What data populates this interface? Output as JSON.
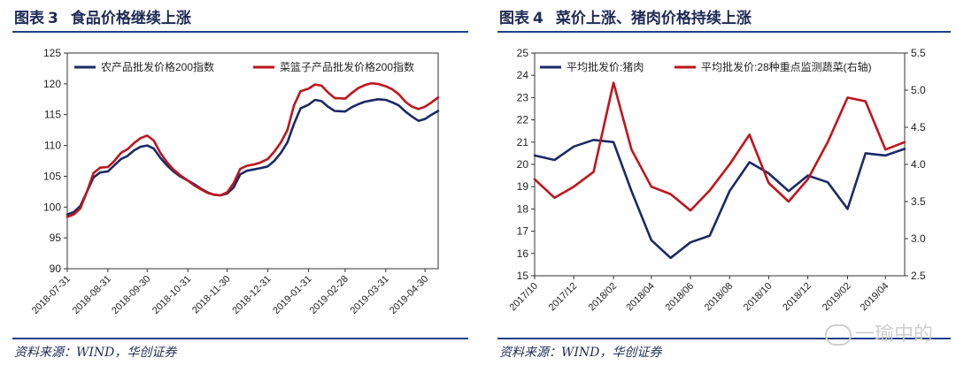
{
  "left": {
    "figure_label": "图表",
    "figure_num": "3",
    "figure_title": "食品价格继续上涨",
    "source": "资料来源：WIND，华创证券"
  },
  "right": {
    "figure_label": "图表",
    "figure_num": "4",
    "figure_title": "菜价上涨、猪肉价格持续上涨",
    "source": "资料来源：WIND，华创证券"
  },
  "watermark": "一瑜中的",
  "colors": {
    "navy": "#1a2a66",
    "red": "#c0141c",
    "rule": "#1f3f8a"
  },
  "chart_data": [
    {
      "type": "line",
      "title": "",
      "xlabel": "",
      "ylabel": "",
      "ylim": [
        90,
        125
      ],
      "yticks": [
        90,
        95,
        100,
        105,
        110,
        115,
        120,
        125
      ],
      "xlim": [
        "2018-07-31",
        "2019-05-10"
      ],
      "xticks": [
        "2018-07-31",
        "2018-08-31",
        "2018-09-30",
        "2018-10-31",
        "2018-11-30",
        "2018-12-31",
        "2019-01-31",
        "2019-02-28",
        "2019-03-31",
        "2019-04-30"
      ],
      "legend": "top",
      "grid": false,
      "series": [
        {
          "name": "农产品批发价格200指数",
          "color": "#1a2a66",
          "axis": "left",
          "points": [
            [
              "2018-07-31",
              98.8
            ],
            [
              "2018-08-05",
              99.2
            ],
            [
              "2018-08-10",
              100.2
            ],
            [
              "2018-08-15",
              102.5
            ],
            [
              "2018-08-20",
              104.8
            ],
            [
              "2018-08-25",
              105.6
            ],
            [
              "2018-08-31",
              105.8
            ],
            [
              "2018-09-05",
              106.8
            ],
            [
              "2018-09-10",
              107.8
            ],
            [
              "2018-09-15",
              108.3
            ],
            [
              "2018-09-20",
              109.2
            ],
            [
              "2018-09-25",
              109.8
            ],
            [
              "2018-09-30",
              110.0
            ],
            [
              "2018-10-05",
              109.5
            ],
            [
              "2018-10-10",
              108.0
            ],
            [
              "2018-10-15",
              106.8
            ],
            [
              "2018-10-20",
              105.8
            ],
            [
              "2018-10-25",
              105.0
            ],
            [
              "2018-10-31",
              104.3
            ],
            [
              "2018-11-05",
              103.7
            ],
            [
              "2018-11-10",
              103.0
            ],
            [
              "2018-11-15",
              102.4
            ],
            [
              "2018-11-20",
              102.0
            ],
            [
              "2018-11-25",
              101.9
            ],
            [
              "2018-11-30",
              102.2
            ],
            [
              "2018-12-05",
              103.2
            ],
            [
              "2018-12-10",
              105.3
            ],
            [
              "2018-12-15",
              105.9
            ],
            [
              "2018-12-20",
              106.1
            ],
            [
              "2018-12-25",
              106.3
            ],
            [
              "2018-12-31",
              106.6
            ],
            [
              "2019-01-05",
              107.5
            ],
            [
              "2019-01-10",
              108.8
            ],
            [
              "2019-01-15",
              110.5
            ],
            [
              "2019-01-20",
              113.5
            ],
            [
              "2019-01-25",
              116.0
            ],
            [
              "2019-01-31",
              116.6
            ],
            [
              "2019-02-05",
              117.4
            ],
            [
              "2019-02-10",
              117.2
            ],
            [
              "2019-02-15",
              116.3
            ],
            [
              "2019-02-20",
              115.6
            ],
            [
              "2019-02-28",
              115.5
            ],
            [
              "2019-03-05",
              116.2
            ],
            [
              "2019-03-10",
              116.7
            ],
            [
              "2019-03-15",
              117.1
            ],
            [
              "2019-03-20",
              117.3
            ],
            [
              "2019-03-25",
              117.5
            ],
            [
              "2019-03-31",
              117.4
            ],
            [
              "2019-04-05",
              117.0
            ],
            [
              "2019-04-10",
              116.5
            ],
            [
              "2019-04-15",
              115.5
            ],
            [
              "2019-04-20",
              114.7
            ],
            [
              "2019-04-25",
              114.0
            ],
            [
              "2019-04-30",
              114.3
            ],
            [
              "2019-05-05",
              115.0
            ],
            [
              "2019-05-10",
              115.6
            ]
          ]
        },
        {
          "name": "菜篮子产品批发价格200指数",
          "color": "#c0141c",
          "axis": "left",
          "points": [
            [
              "2018-07-31",
              98.4
            ],
            [
              "2018-08-05",
              98.8
            ],
            [
              "2018-08-10",
              99.8
            ],
            [
              "2018-08-15",
              102.5
            ],
            [
              "2018-08-20",
              105.5
            ],
            [
              "2018-08-25",
              106.4
            ],
            [
              "2018-08-31",
              106.5
            ],
            [
              "2018-09-05",
              107.5
            ],
            [
              "2018-09-10",
              108.8
            ],
            [
              "2018-09-15",
              109.4
            ],
            [
              "2018-09-20",
              110.4
            ],
            [
              "2018-09-25",
              111.2
            ],
            [
              "2018-09-30",
              111.6
            ],
            [
              "2018-10-05",
              110.8
            ],
            [
              "2018-10-10",
              108.8
            ],
            [
              "2018-10-15",
              107.3
            ],
            [
              "2018-10-20",
              106.1
            ],
            [
              "2018-10-25",
              105.2
            ],
            [
              "2018-10-31",
              104.3
            ],
            [
              "2018-11-05",
              103.5
            ],
            [
              "2018-11-10",
              102.9
            ],
            [
              "2018-11-15",
              102.3
            ],
            [
              "2018-11-20",
              102.0
            ],
            [
              "2018-11-25",
              101.9
            ],
            [
              "2018-11-30",
              102.4
            ],
            [
              "2018-12-05",
              103.9
            ],
            [
              "2018-12-10",
              106.2
            ],
            [
              "2018-12-15",
              106.7
            ],
            [
              "2018-12-20",
              106.9
            ],
            [
              "2018-12-25",
              107.2
            ],
            [
              "2018-12-31",
              107.8
            ],
            [
              "2019-01-05",
              109.0
            ],
            [
              "2019-01-10",
              110.5
            ],
            [
              "2019-01-15",
              112.5
            ],
            [
              "2019-01-20",
              116.5
            ],
            [
              "2019-01-25",
              118.8
            ],
            [
              "2019-01-31",
              119.2
            ],
            [
              "2019-02-05",
              119.9
            ],
            [
              "2019-02-10",
              119.7
            ],
            [
              "2019-02-15",
              118.6
            ],
            [
              "2019-02-20",
              117.7
            ],
            [
              "2019-02-28",
              117.6
            ],
            [
              "2019-03-05",
              118.5
            ],
            [
              "2019-03-10",
              119.3
            ],
            [
              "2019-03-15",
              119.8
            ],
            [
              "2019-03-20",
              120.1
            ],
            [
              "2019-03-25",
              120.0
            ],
            [
              "2019-03-31",
              119.6
            ],
            [
              "2019-04-05",
              119.1
            ],
            [
              "2019-04-10",
              118.3
            ],
            [
              "2019-04-15",
              117.1
            ],
            [
              "2019-04-20",
              116.3
            ],
            [
              "2019-04-25",
              115.9
            ],
            [
              "2019-04-30",
              116.3
            ],
            [
              "2019-05-05",
              117.0
            ],
            [
              "2019-05-10",
              117.8
            ]
          ]
        }
      ]
    },
    {
      "type": "line",
      "title": "",
      "xlabel": "",
      "ylabel": "",
      "ylim": [
        15,
        25
      ],
      "yticks": [
        15,
        16,
        17,
        18,
        19,
        20,
        21,
        22,
        23,
        24,
        25
      ],
      "y2lim": [
        2.5,
        5.5
      ],
      "y2ticks": [
        2.5,
        3.0,
        3.5,
        4.0,
        4.5,
        5.0,
        5.5
      ],
      "xlim": [
        "2017-10",
        "2019-05"
      ],
      "xticks": [
        "2017/10",
        "2017/12",
        "2018/02",
        "2018/04",
        "2018/06",
        "2018/08",
        "2018/10",
        "2018/12",
        "2019/02",
        "2019/04"
      ],
      "legend": "top",
      "grid": false,
      "series": [
        {
          "name": "平均批发价:猪肉",
          "color": "#1a2a66",
          "axis": "left",
          "points": [
            [
              "2017-10",
              20.4
            ],
            [
              "2017-11",
              20.2
            ],
            [
              "2017-12",
              20.8
            ],
            [
              "2018-01",
              21.1
            ],
            [
              "2018-02",
              21.0
            ],
            [
              "2018-03",
              18.8
            ],
            [
              "2018-04",
              16.6
            ],
            [
              "2018-05",
              15.8
            ],
            [
              "2018-06",
              16.5
            ],
            [
              "2018-07",
              16.8
            ],
            [
              "2018-08",
              18.8
            ],
            [
              "2018-09",
              20.1
            ],
            [
              "2018-10",
              19.6
            ],
            [
              "2018-11",
              18.8
            ],
            [
              "2018-12",
              19.5
            ],
            [
              "2019-01",
              19.2
            ],
            [
              "2019-02",
              18.0
            ],
            [
              "2019-03",
              20.5
            ],
            [
              "2019-04",
              20.4
            ],
            [
              "2019-05",
              20.7
            ]
          ]
        },
        {
          "name": "平均批发价:28种重点监测蔬菜(右轴)",
          "color": "#c0141c",
          "axis": "right",
          "points": [
            [
              "2017-10",
              3.8
            ],
            [
              "2017-11",
              3.55
            ],
            [
              "2017-12",
              3.7
            ],
            [
              "2018-01",
              3.9
            ],
            [
              "2018-02",
              5.1
            ],
            [
              "2018-03",
              4.2
            ],
            [
              "2018-04",
              3.7
            ],
            [
              "2018-05",
              3.6
            ],
            [
              "2018-06",
              3.38
            ],
            [
              "2018-07",
              3.65
            ],
            [
              "2018-08",
              4.0
            ],
            [
              "2018-09",
              4.4
            ],
            [
              "2018-10",
              3.75
            ],
            [
              "2018-11",
              3.5
            ],
            [
              "2018-12",
              3.8
            ],
            [
              "2019-01",
              4.3
            ],
            [
              "2019-02",
              4.9
            ],
            [
              "2019-03",
              4.85
            ],
            [
              "2019-04",
              4.2
            ],
            [
              "2019-05",
              4.3
            ]
          ]
        }
      ]
    }
  ]
}
